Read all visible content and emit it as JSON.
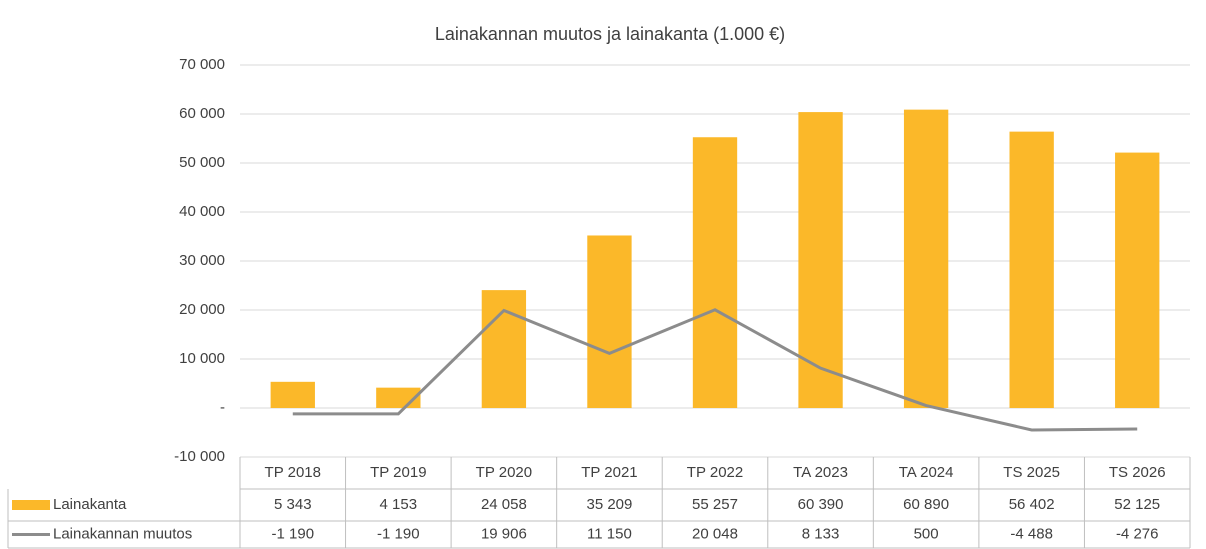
{
  "chart_data": {
    "type": "bar",
    "title": "Lainakannan muutos ja lainakanta (1.000 €)",
    "categories": [
      "TP 2018",
      "TP 2019",
      "TP 2020",
      "TP 2021",
      "TP 2022",
      "TA 2023",
      "TA 2024",
      "TS 2025",
      "TS 2026"
    ],
    "series": [
      {
        "name": "Lainakanta",
        "type": "bar",
        "color": "#fbb829",
        "values": [
          5343,
          4153,
          24058,
          35209,
          55257,
          60390,
          60890,
          56402,
          52125
        ],
        "value_labels": [
          "5 343",
          "4 153",
          "24 058",
          "35 209",
          "55 257",
          "60 390",
          "60 890",
          "56 402",
          "52 125"
        ]
      },
      {
        "name": "Lainakannan muutos",
        "type": "line",
        "color": "#8c8c8c",
        "values": [
          -1190,
          -1190,
          19906,
          11150,
          20048,
          8133,
          500,
          -4488,
          -4276
        ],
        "value_labels": [
          "-1 190",
          "-1 190",
          "19 906",
          "11 150",
          "20 048",
          "8 133",
          "500",
          "-4 488",
          "-4 276"
        ]
      }
    ],
    "ylim": [
      -10000,
      70000
    ],
    "yticks": [
      {
        "value": -10000,
        "label": "-10 000"
      },
      {
        "value": 0,
        "label": "-"
      },
      {
        "value": 10000,
        "label": "10 000"
      },
      {
        "value": 20000,
        "label": "20 000"
      },
      {
        "value": 30000,
        "label": "30 000"
      },
      {
        "value": 40000,
        "label": "40 000"
      },
      {
        "value": 50000,
        "label": "50 000"
      },
      {
        "value": 60000,
        "label": "60 000"
      },
      {
        "value": 70000,
        "label": "70 000"
      }
    ],
    "grid": true
  }
}
